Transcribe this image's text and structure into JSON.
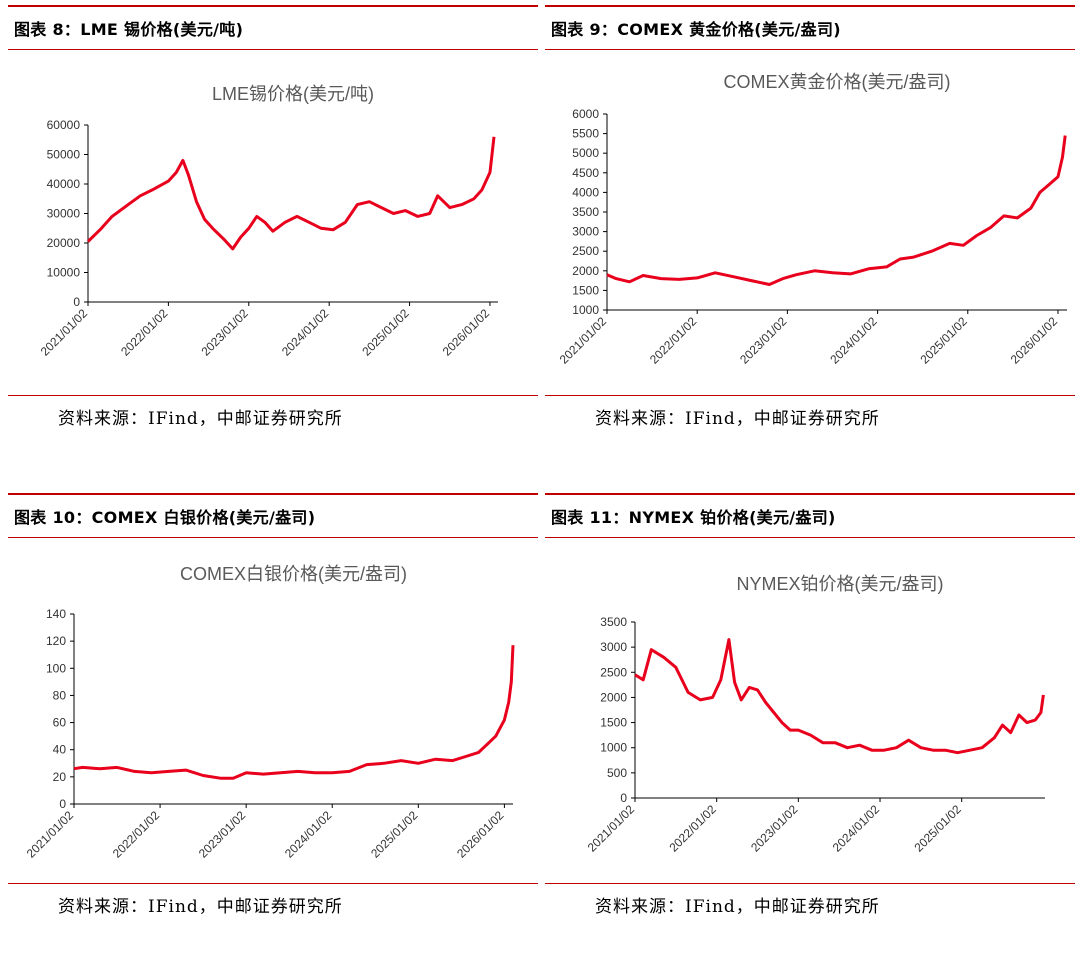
{
  "panels": [
    {
      "heading": "图表 8：LME 锡价格(美元/吨)",
      "source": "资料来源：IFind，中邮证券研究所"
    },
    {
      "heading": "图表 9：COMEX 黄金价格(美元/盎司)",
      "source": "资料来源：IFind，中邮证券研究所"
    },
    {
      "heading": "图表 10：COMEX 白银价格(美元/盎司)",
      "source": "资料来源：IFind，中邮证券研究所"
    },
    {
      "heading": "图表 11：NYMEX 铂价格(美元/盎司)",
      "source": "资料来源：IFind，中邮证券研究所"
    }
  ],
  "chart_data": [
    {
      "type": "line",
      "title": "LME锡价格(美元/吨)",
      "color": "#e8001c",
      "ylim": [
        0,
        60000
      ],
      "y_ticks": [
        "0",
        "10000",
        "20000",
        "30000",
        "40000",
        "50000",
        "60000"
      ],
      "x_ticks": [
        "2021/01/02",
        "2022/01/02",
        "2023/01/02",
        "2024/01/02",
        "2025/01/02",
        "2026/01/02"
      ],
      "series": [
        {
          "x": [
            2021.0,
            2021.15,
            2021.3,
            2021.5,
            2021.65,
            2021.8,
            2022.0,
            2022.1,
            2022.18,
            2022.25,
            2022.35,
            2022.45,
            2022.55,
            2022.7,
            2022.8,
            2022.9,
            2023.0,
            2023.1,
            2023.2,
            2023.3,
            2023.45,
            2023.6,
            2023.75,
            2023.9,
            2024.05,
            2024.2,
            2024.35,
            2024.5,
            2024.65,
            2024.8,
            2024.95,
            2025.1,
            2025.25,
            2025.35,
            2025.5,
            2025.65,
            2025.8,
            2025.9,
            2026.0,
            2026.05
          ],
          "y": [
            20500,
            24500,
            29000,
            33000,
            36000,
            38000,
            41000,
            44000,
            48000,
            43000,
            34000,
            28000,
            25000,
            21000,
            18000,
            22000,
            25000,
            29000,
            27000,
            24000,
            27000,
            29000,
            27000,
            25000,
            24500,
            27000,
            33000,
            34000,
            32000,
            30000,
            31000,
            29000,
            30000,
            36000,
            32000,
            33000,
            35000,
            38000,
            44000,
            56000
          ]
        }
      ]
    },
    {
      "type": "line",
      "title": "COMEX黄金价格(美元/盎司)",
      "color": "#e8001c",
      "ylim": [
        1000,
        6000
      ],
      "y_ticks": [
        "1000",
        "1500",
        "2000",
        "2500",
        "3000",
        "3500",
        "4000",
        "4500",
        "5000",
        "5500",
        "6000"
      ],
      "x_ticks": [
        "2021/01/02",
        "2022/01/02",
        "2023/01/02",
        "2024/01/02",
        "2025/01/02",
        "2026/01/02"
      ],
      "series": [
        {
          "x": [
            2021.0,
            2021.1,
            2021.25,
            2021.4,
            2021.6,
            2021.8,
            2022.0,
            2022.2,
            2022.4,
            2022.6,
            2022.8,
            2022.95,
            2023.1,
            2023.3,
            2023.5,
            2023.7,
            2023.9,
            2024.1,
            2024.25,
            2024.4,
            2024.6,
            2024.8,
            2024.95,
            2025.1,
            2025.25,
            2025.4,
            2025.55,
            2025.7,
            2025.8,
            2025.9,
            2026.0,
            2026.05,
            2026.08
          ],
          "y": [
            1900,
            1800,
            1720,
            1880,
            1800,
            1780,
            1820,
            1950,
            1850,
            1750,
            1650,
            1800,
            1900,
            2000,
            1950,
            1920,
            2050,
            2100,
            2300,
            2350,
            2500,
            2700,
            2650,
            2900,
            3100,
            3400,
            3350,
            3600,
            4000,
            4200,
            4400,
            4900,
            5450
          ]
        }
      ]
    },
    {
      "type": "line",
      "title": "COMEX白银价格(美元/盎司)",
      "color": "#e8001c",
      "ylim": [
        0,
        140
      ],
      "y_ticks": [
        "0",
        "20",
        "40",
        "60",
        "80",
        "100",
        "120",
        "140"
      ],
      "x_ticks": [
        "2021/01/02",
        "2022/01/02",
        "2023/01/02",
        "2024/01/02",
        "2025/01/02",
        "2026/01/02"
      ],
      "series": [
        {
          "x": [
            2021.0,
            2021.1,
            2021.3,
            2021.5,
            2021.7,
            2021.9,
            2022.1,
            2022.3,
            2022.5,
            2022.7,
            2022.85,
            2023.0,
            2023.2,
            2023.4,
            2023.6,
            2023.8,
            2024.0,
            2024.2,
            2024.4,
            2024.6,
            2024.8,
            2025.0,
            2025.2,
            2025.4,
            2025.55,
            2025.7,
            2025.8,
            2025.9,
            2026.0,
            2026.05,
            2026.08,
            2026.1
          ],
          "y": [
            26,
            27,
            26,
            27,
            24,
            23,
            24,
            25,
            21,
            19,
            19,
            23,
            22,
            23,
            24,
            23,
            23,
            24,
            29,
            30,
            32,
            30,
            33,
            32,
            35,
            38,
            44,
            50,
            62,
            75,
            90,
            117
          ]
        }
      ]
    },
    {
      "type": "line",
      "title": "NYMEX铂价格(美元/盎司)",
      "color": "#e8001c",
      "ylim": [
        0,
        3500
      ],
      "y_ticks": [
        "0",
        "500",
        "1000",
        "1500",
        "2000",
        "2500",
        "3000",
        "3500"
      ],
      "x_ticks": [
        "2021/01/02",
        "2022/01/02",
        "2023/01/02",
        "2024/01/02",
        "2025/01/02"
      ],
      "series": [
        {
          "x": [
            2021.0,
            2021.1,
            2021.2,
            2021.35,
            2021.5,
            2021.65,
            2021.8,
            2021.95,
            2022.05,
            2022.15,
            2022.22,
            2022.3,
            2022.4,
            2022.5,
            2022.6,
            2022.7,
            2022.8,
            2022.9,
            2023.0,
            2023.15,
            2023.3,
            2023.45,
            2023.6,
            2023.75,
            2023.9,
            2024.05,
            2024.2,
            2024.35,
            2024.5,
            2024.65,
            2024.8,
            2024.95,
            2025.1,
            2025.25,
            2025.4,
            2025.5,
            2025.6,
            2025.7,
            2025.8,
            2025.9,
            2025.97,
            2026.0
          ],
          "y": [
            2450,
            2350,
            2950,
            2800,
            2600,
            2100,
            1950,
            2000,
            2350,
            3150,
            2300,
            1950,
            2200,
            2150,
            1900,
            1700,
            1500,
            1350,
            1350,
            1250,
            1100,
            1100,
            1000,
            1050,
            950,
            950,
            1000,
            1150,
            1000,
            950,
            950,
            900,
            950,
            1000,
            1200,
            1450,
            1300,
            1650,
            1500,
            1550,
            1700,
            2050
          ]
        }
      ]
    }
  ]
}
